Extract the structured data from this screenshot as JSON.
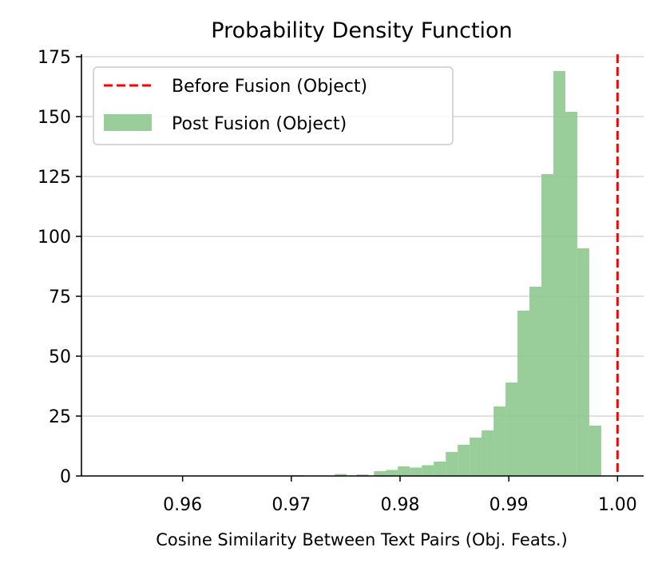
{
  "chart_data": {
    "type": "bar",
    "title": "Probability Density Function",
    "xlabel": "Cosine Similarity Between Text Pairs (Obj. Feats.)",
    "ylabel": "",
    "xlim": [
      0.9507,
      1.0024
    ],
    "ylim": [
      0,
      176
    ],
    "xticks": [
      0.96,
      0.97,
      0.98,
      0.99,
      1.0
    ],
    "xtick_labels": [
      "0.96",
      "0.97",
      "0.98",
      "0.99",
      "1.00"
    ],
    "yticks": [
      0,
      25,
      50,
      75,
      100,
      125,
      150,
      175
    ],
    "ytick_labels": [
      "0",
      "25",
      "50",
      "75",
      "100",
      "125",
      "150",
      "175"
    ],
    "grid": "horizontal",
    "legend_position": "upper-left",
    "series": [
      {
        "name": "Before Fusion (Object)",
        "type": "vline",
        "x": 1.0,
        "color": "#ff0000",
        "style": "dashed"
      },
      {
        "name": "Post Fusion (Object)",
        "type": "histogram",
        "color": "#8bc68b",
        "bin_edges": [
          0.9776,
          0.9787,
          0.9798,
          0.9809,
          0.982,
          0.9831,
          0.9842,
          0.9853,
          0.9864,
          0.9875,
          0.9886,
          0.9897,
          0.9908,
          0.9919,
          0.993,
          0.9941,
          0.9952,
          0.9963,
          0.9974,
          0.9985,
          0.9996
        ],
        "values": [
          2,
          2.5,
          4,
          3.5,
          4.5,
          6,
          10,
          13,
          16,
          19,
          29,
          39,
          69,
          79,
          126,
          169,
          152,
          95,
          21,
          0
        ],
        "low_tail_x": [
          0.953,
          0.965,
          0.97,
          0.974,
          0.976
        ],
        "low_tail_values": [
          0.2,
          0.2,
          0.3,
          0.8,
          0.6
        ]
      }
    ]
  }
}
